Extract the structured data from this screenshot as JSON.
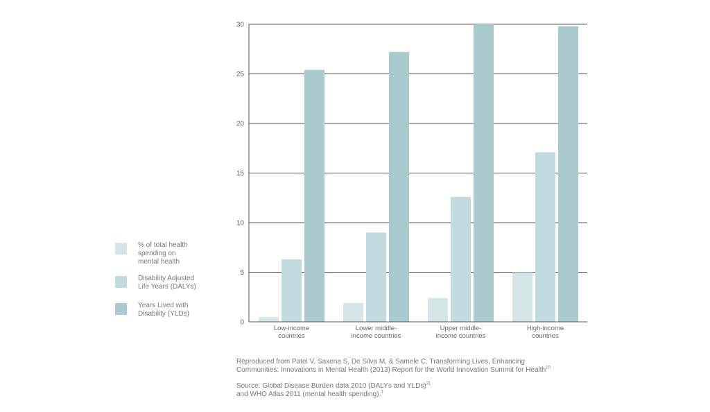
{
  "chart_data": {
    "type": "bar",
    "categories": [
      [
        "Low-income",
        "countries"
      ],
      [
        "Lower middle-",
        "income countries"
      ],
      [
        "Upper middle-",
        "income countries"
      ],
      [
        "High-income",
        "countries"
      ]
    ],
    "series": [
      {
        "name": "% of total health spending on mental health",
        "color": "#d5e6e8",
        "values": [
          0.5,
          1.9,
          2.4,
          5.0
        ]
      },
      {
        "name": "Disability Adjusted Life Years (DALYs)",
        "color": "#c0dadd",
        "values": [
          6.3,
          9.0,
          12.6,
          17.1
        ]
      },
      {
        "name": "Years Lived with Disability (YLDs)",
        "color": "#a9cbce",
        "values": [
          25.4,
          27.2,
          30.0,
          29.8
        ]
      }
    ],
    "ylim": [
      0,
      30
    ],
    "yticks": [
      0,
      5,
      10,
      15,
      20,
      25,
      30
    ],
    "grid": true,
    "legend_position": "left"
  },
  "legend": [
    {
      "lines": [
        "% of total health",
        "spending on",
        "mental health"
      ],
      "color": "#d5e6e8"
    },
    {
      "lines": [
        "Disability Adjusted",
        "Life Years (DALYs)"
      ],
      "color": "#c0dadd"
    },
    {
      "lines": [
        "Years Lived with",
        "Disability (YLDs)"
      ],
      "color": "#a9cbce"
    }
  ],
  "notes": {
    "line1": "Reproduced from Patel V, Saxena S, De Silva M, & Samele C. Transforming Lives, Enhancing",
    "line2": "Communities: Innovations in Mental Health (2013) Report for the World Innovation Summit for Health",
    "line2_sup": "10",
    "line3": "Source: Global Disease Burden data 2010 (DALYs and YLDs)",
    "line3_sup": "31",
    "line4": "and WHO Atlas 2011 (mental health spending).",
    "line4_sup": "3"
  }
}
